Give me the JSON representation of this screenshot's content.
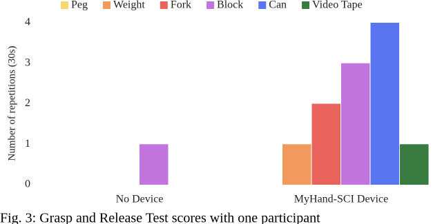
{
  "chart_data": {
    "type": "bar",
    "y_label": "Number of repetitions (30s)",
    "categories": [
      "No Device",
      "MyHand-SCI Device"
    ],
    "series": [
      {
        "name": "Peg",
        "color": "#f6d86b",
        "values": [
          0,
          0
        ]
      },
      {
        "name": "Weight",
        "color": "#f29a5e",
        "values": [
          0,
          1
        ]
      },
      {
        "name": "Fork",
        "color": "#e9625c",
        "values": [
          0,
          2
        ]
      },
      {
        "name": "Block",
        "color": "#c274de",
        "values": [
          1,
          3
        ]
      },
      {
        "name": "Can",
        "color": "#5874ef",
        "values": [
          0,
          4
        ]
      },
      {
        "name": "Video Tape",
        "color": "#377b41",
        "values": [
          0,
          1
        ]
      }
    ],
    "ylim": [
      0,
      4
    ],
    "yticks": [
      0,
      1,
      2,
      3,
      4
    ],
    "grid": false,
    "legend": "top"
  },
  "caption": "Fig. 3: Grasp and Release Test scores with one participant"
}
